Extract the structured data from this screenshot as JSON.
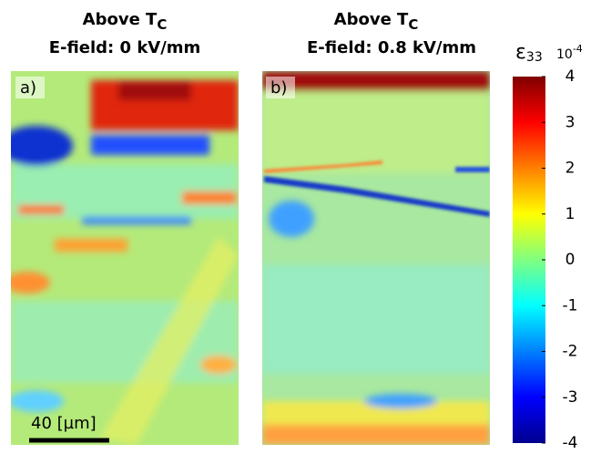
{
  "panels": [
    {
      "label": "a)",
      "title": "Above T",
      "title_subscript": "C",
      "subtitle": "E-field: 0 kV/mm"
    },
    {
      "label": "b)",
      "title": "Above T",
      "title_subscript": "C",
      "subtitle": "E-field: 0.8 kV/mm"
    }
  ],
  "scale_bar": "40 [µm]",
  "colorbar": {
    "label": "ε",
    "label_subscript": "33",
    "multiplier": "10",
    "multiplier_exponent": "-4",
    "lim": [
      -4,
      4
    ],
    "ticks": [
      -4,
      -3,
      -2,
      -1,
      0,
      1,
      2,
      3,
      4
    ]
  }
}
